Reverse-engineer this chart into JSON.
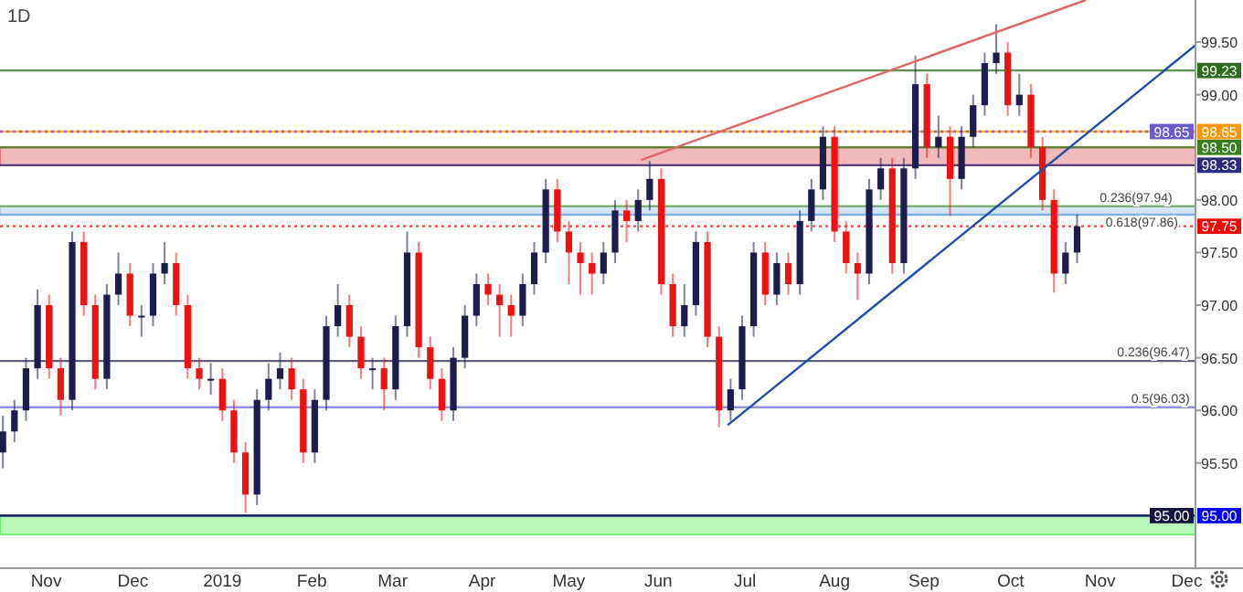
{
  "chart_data": {
    "type": "candlestick",
    "title": "1D",
    "x": [
      "2018-10-17",
      "2018-10-21",
      "2018-10-25",
      "2018-10-29",
      "2018-11-02",
      "2018-11-06",
      "2018-11-10",
      "2018-11-14",
      "2018-11-18",
      "2018-11-22",
      "2018-11-26",
      "2018-11-30",
      "2018-12-04",
      "2018-12-08",
      "2018-12-12",
      "2018-12-16",
      "2018-12-20",
      "2018-12-24",
      "2018-12-28",
      "2019-01-01",
      "2019-01-05",
      "2019-01-09",
      "2019-01-13",
      "2019-01-17",
      "2019-01-21",
      "2019-01-25",
      "2019-01-29",
      "2019-02-02",
      "2019-02-06",
      "2019-02-10",
      "2019-02-14",
      "2019-02-18",
      "2019-02-22",
      "2019-02-26",
      "2019-03-02",
      "2019-03-06",
      "2019-03-10",
      "2019-03-14",
      "2019-03-18",
      "2019-03-22",
      "2019-03-26",
      "2019-03-30",
      "2019-04-03",
      "2019-04-07",
      "2019-04-11",
      "2019-04-15",
      "2019-04-19",
      "2019-04-23",
      "2019-04-27",
      "2019-05-01",
      "2019-05-05",
      "2019-05-09",
      "2019-05-13",
      "2019-05-17",
      "2019-05-21",
      "2019-05-25",
      "2019-05-29",
      "2019-06-02",
      "2019-06-06",
      "2019-06-10",
      "2019-06-14",
      "2019-06-18",
      "2019-06-22",
      "2019-06-26",
      "2019-06-30",
      "2019-07-04",
      "2019-07-08",
      "2019-07-12",
      "2019-07-16",
      "2019-07-20",
      "2019-07-24",
      "2019-07-28",
      "2019-08-01",
      "2019-08-05",
      "2019-08-09",
      "2019-08-13",
      "2019-08-17",
      "2019-08-21",
      "2019-08-25",
      "2019-08-29",
      "2019-09-02",
      "2019-09-06",
      "2019-09-10",
      "2019-09-14",
      "2019-09-18",
      "2019-09-22",
      "2019-09-26",
      "2019-09-30",
      "2019-10-04",
      "2019-10-08",
      "2019-10-12",
      "2019-10-16",
      "2019-10-20",
      "2019-10-24"
    ],
    "ohlc": [
      [
        95.6,
        95.95,
        95.45,
        95.8
      ],
      [
        95.8,
        96.1,
        95.7,
        96.0
      ],
      [
        96.0,
        96.5,
        95.9,
        96.4
      ],
      [
        96.4,
        97.15,
        96.3,
        97.0
      ],
      [
        97.0,
        97.1,
        96.3,
        96.4
      ],
      [
        96.4,
        96.5,
        95.95,
        96.1
      ],
      [
        96.1,
        97.7,
        96.0,
        97.6
      ],
      [
        97.6,
        97.7,
        96.9,
        97.0
      ],
      [
        97.0,
        97.1,
        96.2,
        96.3
      ],
      [
        96.3,
        97.2,
        96.2,
        97.1
      ],
      [
        97.1,
        97.5,
        97.0,
        97.3
      ],
      [
        97.3,
        97.4,
        96.8,
        96.9
      ],
      [
        96.9,
        97.0,
        96.7,
        96.9
      ],
      [
        96.9,
        97.4,
        96.8,
        97.3
      ],
      [
        97.3,
        97.6,
        97.2,
        97.4
      ],
      [
        97.4,
        97.5,
        96.9,
        97.0
      ],
      [
        97.0,
        97.1,
        96.3,
        96.4
      ],
      [
        96.4,
        96.5,
        96.2,
        96.3
      ],
      [
        96.3,
        96.45,
        96.15,
        96.3
      ],
      [
        96.3,
        96.4,
        95.9,
        96.0
      ],
      [
        96.0,
        96.1,
        95.5,
        95.6
      ],
      [
        95.6,
        95.7,
        95.03,
        95.2
      ],
      [
        95.2,
        96.2,
        95.1,
        96.1
      ],
      [
        96.1,
        96.45,
        96.0,
        96.3
      ],
      [
        96.3,
        96.55,
        96.2,
        96.4
      ],
      [
        96.4,
        96.5,
        96.1,
        96.2
      ],
      [
        96.2,
        96.3,
        95.5,
        95.6
      ],
      [
        95.6,
        96.2,
        95.5,
        96.1
      ],
      [
        96.1,
        96.9,
        96.0,
        96.8
      ],
      [
        96.8,
        97.2,
        96.7,
        97.0
      ],
      [
        97.0,
        97.1,
        96.6,
        96.7
      ],
      [
        96.7,
        96.8,
        96.3,
        96.4
      ],
      [
        96.4,
        96.5,
        96.2,
        96.4
      ],
      [
        96.4,
        96.5,
        96.0,
        96.2
      ],
      [
        96.2,
        96.9,
        96.1,
        96.8
      ],
      [
        96.8,
        97.7,
        96.7,
        97.5
      ],
      [
        97.5,
        97.6,
        96.5,
        96.6
      ],
      [
        96.6,
        96.7,
        96.2,
        96.3
      ],
      [
        96.3,
        96.4,
        95.9,
        96.0
      ],
      [
        96.0,
        96.6,
        95.9,
        96.5
      ],
      [
        96.5,
        97.0,
        96.4,
        96.9
      ],
      [
        96.9,
        97.3,
        96.8,
        97.2
      ],
      [
        97.2,
        97.3,
        97.0,
        97.1
      ],
      [
        97.1,
        97.2,
        96.7,
        97.0
      ],
      [
        97.0,
        97.1,
        96.7,
        96.9
      ],
      [
        96.9,
        97.3,
        96.8,
        97.2
      ],
      [
        97.2,
        97.6,
        97.1,
        97.5
      ],
      [
        97.5,
        98.2,
        97.4,
        98.1
      ],
      [
        98.1,
        98.2,
        97.6,
        97.7
      ],
      [
        97.7,
        97.8,
        97.2,
        97.5
      ],
      [
        97.5,
        97.6,
        97.1,
        97.4
      ],
      [
        97.4,
        97.5,
        97.1,
        97.3
      ],
      [
        97.3,
        97.6,
        97.2,
        97.5
      ],
      [
        97.5,
        98.0,
        97.4,
        97.9
      ],
      [
        97.9,
        98.0,
        97.6,
        97.8
      ],
      [
        97.8,
        98.1,
        97.7,
        98.0
      ],
      [
        98.0,
        98.37,
        97.9,
        98.2
      ],
      [
        98.2,
        98.3,
        97.1,
        97.2
      ],
      [
        97.2,
        97.3,
        96.7,
        96.8
      ],
      [
        96.8,
        97.2,
        96.7,
        97.0
      ],
      [
        97.0,
        97.7,
        96.9,
        97.6
      ],
      [
        97.6,
        97.7,
        96.6,
        96.7
      ],
      [
        96.7,
        96.8,
        95.84,
        96.0
      ],
      [
        96.0,
        96.3,
        95.9,
        96.2
      ],
      [
        96.2,
        96.9,
        96.1,
        96.8
      ],
      [
        96.8,
        97.6,
        96.7,
        97.5
      ],
      [
        97.5,
        97.6,
        97.0,
        97.1
      ],
      [
        97.1,
        97.5,
        97.0,
        97.4
      ],
      [
        97.4,
        97.5,
        97.1,
        97.2
      ],
      [
        97.2,
        97.9,
        97.1,
        97.8
      ],
      [
        97.8,
        98.2,
        97.7,
        98.1
      ],
      [
        98.1,
        98.7,
        98.0,
        98.6
      ],
      [
        98.6,
        98.7,
        97.6,
        97.7
      ],
      [
        97.7,
        97.8,
        97.3,
        97.4
      ],
      [
        97.4,
        97.5,
        97.05,
        97.3
      ],
      [
        97.3,
        98.2,
        97.2,
        98.1
      ],
      [
        98.1,
        98.4,
        98.0,
        98.3
      ],
      [
        98.3,
        98.4,
        97.3,
        97.4
      ],
      [
        97.4,
        98.4,
        97.3,
        98.3
      ],
      [
        98.3,
        99.37,
        98.2,
        99.1
      ],
      [
        99.1,
        99.2,
        98.4,
        98.5
      ],
      [
        98.5,
        98.8,
        98.4,
        98.6
      ],
      [
        98.6,
        98.7,
        97.85,
        98.2
      ],
      [
        98.2,
        98.7,
        98.1,
        98.6
      ],
      [
        98.6,
        99.0,
        98.5,
        98.9
      ],
      [
        98.9,
        99.4,
        98.8,
        99.3
      ],
      [
        99.3,
        99.67,
        99.2,
        99.4
      ],
      [
        99.4,
        99.5,
        98.8,
        98.9
      ],
      [
        98.9,
        99.2,
        98.8,
        99.0
      ],
      [
        99.0,
        99.1,
        98.4,
        98.5
      ],
      [
        98.5,
        98.6,
        97.9,
        98.0
      ],
      [
        98.0,
        98.1,
        97.12,
        97.3
      ],
      [
        97.3,
        97.6,
        97.2,
        97.5
      ],
      [
        97.5,
        97.86,
        97.4,
        97.75
      ]
    ],
    "colors": [
      "#1c1c4f",
      "#1c1c4f",
      "#1c1c4f",
      "#1c1c4f",
      "#f01010",
      "#f01010",
      "#1c1c4f",
      "#f01010",
      "#f01010",
      "#1c1c4f",
      "#1c1c4f",
      "#f01010",
      "#1c1c4f",
      "#1c1c4f",
      "#1c1c4f",
      "#f01010",
      "#f01010",
      "#f01010",
      "#1c1c4f",
      "#f01010",
      "#f01010",
      "#f01010",
      "#1c1c4f",
      "#1c1c4f",
      "#1c1c4f",
      "#f01010",
      "#f01010",
      "#1c1c4f",
      "#1c1c4f",
      "#1c1c4f",
      "#f01010",
      "#f01010",
      "#1c1c4f",
      "#f01010",
      "#1c1c4f",
      "#1c1c4f",
      "#f01010",
      "#f01010",
      "#f01010",
      "#1c1c4f",
      "#1c1c4f",
      "#1c1c4f",
      "#f01010",
      "#f01010",
      "#f01010",
      "#1c1c4f",
      "#1c1c4f",
      "#1c1c4f",
      "#f01010",
      "#f01010",
      "#f01010",
      "#f01010",
      "#1c1c4f",
      "#1c1c4f",
      "#f01010",
      "#1c1c4f",
      "#1c1c4f",
      "#f01010",
      "#f01010",
      "#1c1c4f",
      "#1c1c4f",
      "#f01010",
      "#f01010",
      "#1c1c4f",
      "#1c1c4f",
      "#1c1c4f",
      "#f01010",
      "#1c1c4f",
      "#f01010",
      "#1c1c4f",
      "#1c1c4f",
      "#1c1c4f",
      "#f01010",
      "#f01010",
      "#f01010",
      "#1c1c4f",
      "#1c1c4f",
      "#f01010",
      "#1c1c4f",
      "#1c1c4f",
      "#f01010",
      "#1c1c4f",
      "#f01010",
      "#1c1c4f",
      "#1c1c4f",
      "#1c1c4f",
      "#1c1c4f",
      "#f01010",
      "#1c1c4f",
      "#f01010",
      "#f01010",
      "#f01010",
      "#1c1c4f",
      "#1c1c4f"
    ],
    "series": [
      {
        "type": "line",
        "color": "#e06666",
        "x": [
          "2019-05-26",
          "2019-10-27"
        ],
        "values": [
          98.38,
          99.9
        ]
      },
      {
        "type": "line",
        "color": "#1f4fa8",
        "x": [
          "2019-06-25",
          "2019-12-04"
        ],
        "values": [
          95.86,
          99.47
        ]
      }
    ],
    "xlim": [
      "2018-10-16",
      "2019-12-04"
    ],
    "xticks": [
      {
        "value": "2018-11-01",
        "label": "Nov"
      },
      {
        "value": "2018-12-01",
        "label": "Dec"
      },
      {
        "value": "2019-01-01",
        "label": "2019"
      },
      {
        "value": "2019-02-01",
        "label": "Feb"
      },
      {
        "value": "2019-03-01",
        "label": "Mar"
      },
      {
        "value": "2019-04-01",
        "label": "Apr"
      },
      {
        "value": "2019-05-01",
        "label": "May"
      },
      {
        "value": "2019-06-01",
        "label": "Jun"
      },
      {
        "value": "2019-07-01",
        "label": "Jul"
      },
      {
        "value": "2019-08-01",
        "label": "Aug"
      },
      {
        "value": "2019-09-01",
        "label": "Sep"
      },
      {
        "value": "2019-10-01",
        "label": "Oct"
      },
      {
        "value": "2019-11-01",
        "label": "Nov"
      },
      {
        "value": "2019-12-01",
        "label": "Dec"
      }
    ],
    "ylim": [
      94.5,
      99.9
    ],
    "legend": "right",
    "yticks": [
      {
        "value": 95.5,
        "label": "95.50"
      },
      {
        "value": 96,
        "label": "96.00"
      },
      {
        "value": 96.5,
        "label": "96.50"
      },
      {
        "value": 97,
        "label": "97.00"
      },
      {
        "value": 97.5,
        "label": "97.50"
      },
      {
        "value": 98,
        "label": "98.00"
      },
      {
        "value": 99,
        "label": "99.00"
      },
      {
        "value": 99.5,
        "label": "99.50"
      }
    ],
    "bands": [
      {
        "axis": "y",
        "from": 98.33,
        "to": 98.5,
        "color": "#e06666"
      },
      {
        "axis": "y",
        "from": 97.86,
        "to": 97.94,
        "color": "#9fc5e8"
      },
      {
        "axis": "y",
        "from": 94.82,
        "to": 95.0,
        "color": "#66ee66"
      }
    ],
    "ref_lines": [
      {
        "axis": "y",
        "value": 99.23,
        "label": "99.23",
        "color": "#2e6b1e"
      },
      {
        "axis": "y",
        "value": 98.65,
        "label": "98.65",
        "color": "#ff9800"
      },
      {
        "axis": "y",
        "value": 98.65,
        "label": "98.65",
        "color": "#6a5acd",
        "line_style": "dotted"
      },
      {
        "axis": "y",
        "value": 98.5,
        "label": "98.50",
        "color": "#3a7d1e"
      },
      {
        "axis": "y",
        "value": 98.33,
        "label": "98.33",
        "color": "#2a2a80"
      },
      {
        "axis": "y",
        "value": 97.94,
        "color": "#6aa84f"
      },
      {
        "axis": "y",
        "value": 97.86,
        "color": "#6fa8dc"
      },
      {
        "axis": "y",
        "value": 97.75,
        "label": "97.75",
        "color": "#ff0000",
        "line_style": "dotted"
      },
      {
        "axis": "y",
        "value": 96.47,
        "color": "#2b2b55"
      },
      {
        "axis": "y",
        "value": 96.03,
        "color": "#6b6bdf"
      },
      {
        "axis": "y",
        "value": 95.0,
        "label": "95.00",
        "color": "#0000ff"
      },
      {
        "axis": "y",
        "value": 95.0,
        "label": "95.00",
        "color": "#14143c"
      }
    ],
    "annotations": [
      {
        "text": "0.236(97.94)",
        "x": "2019-11-26",
        "y": 97.94
      },
      {
        "text": "0.618(97.86)",
        "x": "2019-11-28",
        "y": 97.86
      },
      {
        "text": "0.236(96.47)",
        "x": "2019-12-02",
        "y": 96.47
      },
      {
        "text": "0.5(96.03)",
        "x": "2019-12-02",
        "y": 96.03
      }
    ]
  }
}
